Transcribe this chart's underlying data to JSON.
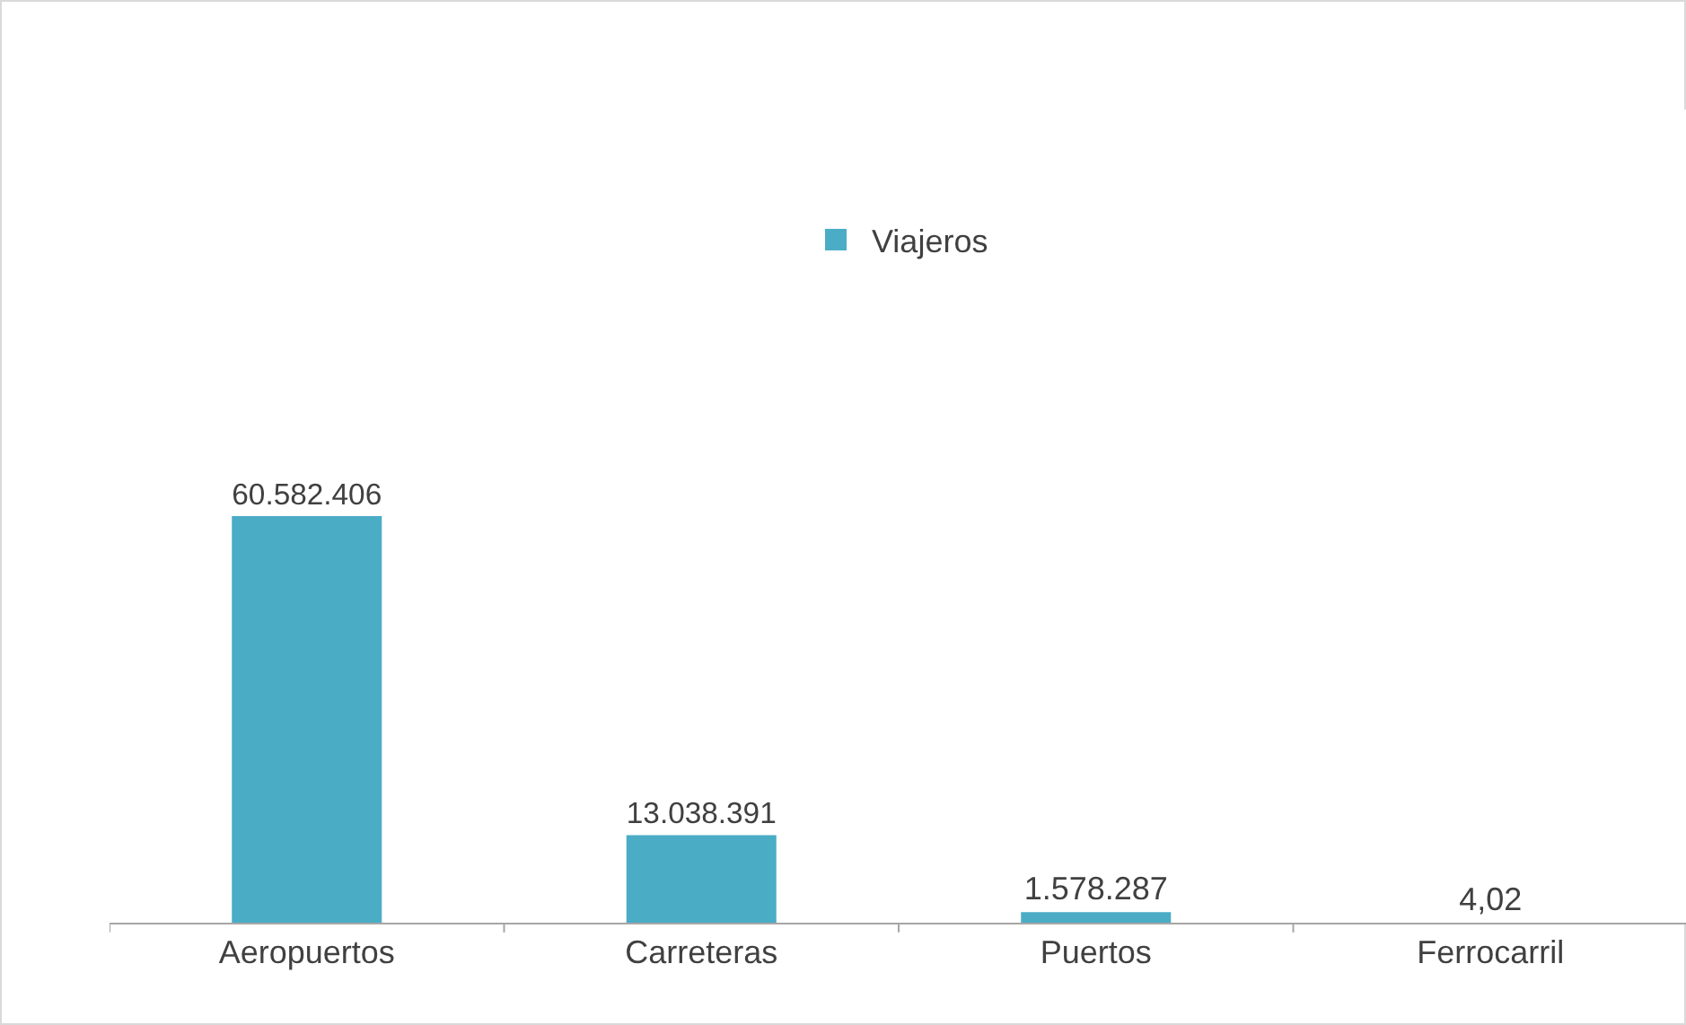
{
  "chart_data": {
    "type": "bar",
    "categories": [
      "Aeropuertos",
      "Carreteras",
      "Puertos",
      "Ferrocarril"
    ],
    "series": [
      {
        "name": "Viajeros",
        "color": "#4bacc6",
        "values": [
          60582406,
          13038391,
          1578287,
          4.02
        ],
        "value_labels": [
          "60.582.406",
          "13.038.391",
          "1.578.287",
          "4,02"
        ]
      }
    ],
    "legend": "top",
    "grid": false
  }
}
